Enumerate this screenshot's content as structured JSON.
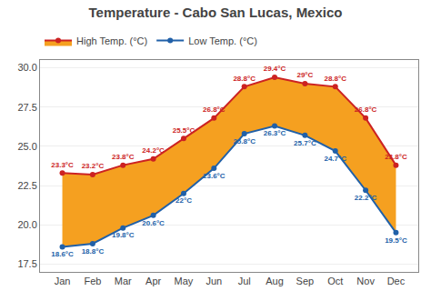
{
  "chart_data": {
    "type": "line",
    "title": "Temperature - Cabo San Lucas, Mexico",
    "categories": [
      "Jan",
      "Feb",
      "Mar",
      "Apr",
      "May",
      "Jun",
      "Jul",
      "Aug",
      "Sep",
      "Oct",
      "Nov",
      "Dec"
    ],
    "series": [
      {
        "name": "Low Temp. (°C)",
        "color": "#2060a8",
        "values": [
          18.6,
          18.8,
          19.8,
          20.6,
          22.0,
          23.6,
          25.8,
          26.3,
          25.7,
          24.7,
          22.2,
          19.5
        ],
        "value_labels": [
          "18.6°C",
          "18.8°C",
          "19.8°C",
          "20.6°C",
          "22°C",
          "23.6°C",
          "25.8°C",
          "26.3°C",
          "25.7°C",
          "24.7°C",
          "22.2°C",
          "19.5°C"
        ]
      },
      {
        "name": "High Temp. (°C)",
        "color": "#cc2222",
        "values": [
          23.3,
          23.2,
          23.8,
          24.2,
          25.5,
          26.8,
          28.8,
          29.4,
          29.0,
          28.8,
          26.8,
          23.8
        ],
        "value_labels": [
          "23.3°C",
          "23.2°C",
          "23.8°C",
          "24.2°C",
          "25.5°C",
          "26.8°C",
          "28.8°C",
          "29.4°C",
          "29°C",
          "28.8°C",
          "26.8°C",
          "23.8°C"
        ]
      }
    ],
    "color": "#f5a020",
    "ylim": [
      17.0,
      30.5
    ],
    "yticks": [
      17.5,
      {
        "value": 20.0,
        "label": "20.0"
      },
      22.5,
      {
        "value": 25.0,
        "label": "25.0"
      },
      27.5,
      {
        "value": 30.0,
        "label": "30.0"
      }
    ],
    "grid": true,
    "legend": "upper left",
    "data_labels": true
  }
}
